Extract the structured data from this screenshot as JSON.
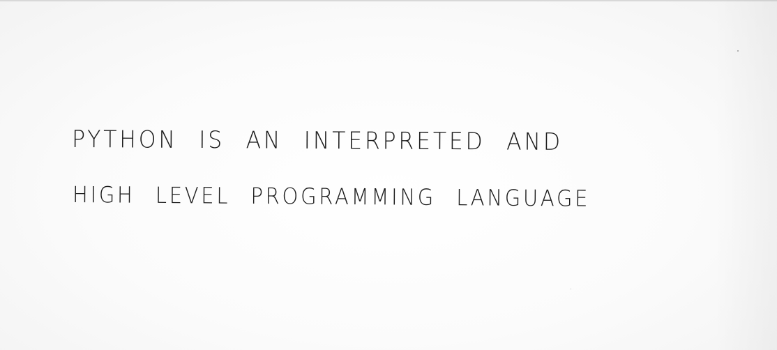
{
  "note": {
    "lines": [
      "PYTHON IS AN INTERPRETED AND",
      "HIGH LEVEL PROGRAMMING LANGUAGE"
    ]
  },
  "colors": {
    "paper": "#fbfbfb",
    "ink": "#1c1c1c"
  }
}
